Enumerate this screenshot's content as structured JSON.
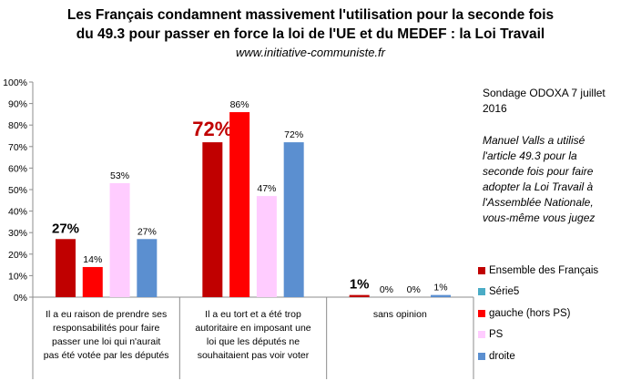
{
  "header": {
    "title_line1": "Les Français condamnent massivement l'utilisation pour la seconde fois",
    "title_line2": "du 49.3 pour passer en force la loi de l'UE et du MEDEF : la Loi Travail",
    "website": "www.initiative-communiste.fr"
  },
  "notes": {
    "source": "Sondage ODOXA 7 juillet 2016",
    "comment": "Manuel Valls a utilisé l'article 49.3 pour la seconde fois pour faire adopter la Loi Travail à l'Assemblée Nationale, vous-même vous jugez"
  },
  "chart_data": {
    "type": "bar",
    "ylim": [
      0,
      100
    ],
    "yticks": [
      "0%",
      "10%",
      "20%",
      "30%",
      "40%",
      "50%",
      "60%",
      "70%",
      "80%",
      "90%",
      "100%"
    ],
    "grid": false,
    "legend_position": "bottom-right",
    "categories": [
      "Il a eu raison de prendre ses responsabilités pour faire passer une loi qui n'aurait pas été votée par les députés",
      "Il a eu tort et a été trop autoritaire en imposant une loi que les députés ne souhaitaient pas voir voter",
      "sans opinion"
    ],
    "series": [
      {
        "name": "Ensemble des Français",
        "color": "#c00000",
        "values": [
          27,
          72,
          1
        ],
        "labels": [
          "27%",
          "72%",
          "1%"
        ]
      },
      {
        "name": "Série5",
        "color": "#4bacc6",
        "values": [
          null,
          null,
          null
        ],
        "labels": [
          "",
          "",
          ""
        ]
      },
      {
        "name": "gauche (hors PS)",
        "color": "#ff0000",
        "values": [
          14,
          86,
          0
        ],
        "labels": [
          "14%",
          "86%",
          "0%"
        ]
      },
      {
        "name": "PS",
        "color": "#ffccff",
        "values": [
          53,
          47,
          0
        ],
        "labels": [
          "53%",
          "47%",
          "0%"
        ]
      },
      {
        "name": "droite",
        "color": "#5b8fd0",
        "values": [
          27,
          72,
          1
        ],
        "labels": [
          "27%",
          "72%",
          "1%"
        ]
      }
    ]
  }
}
